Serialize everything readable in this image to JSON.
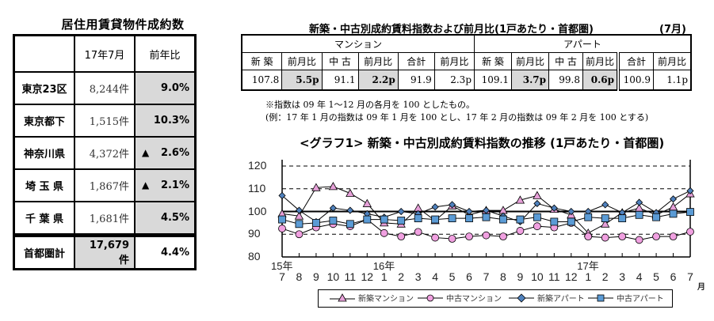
{
  "left_table": {
    "title": "居住用賃貸物件成約数",
    "headers": [
      "",
      "17年7月",
      "前年比"
    ],
    "rows": [
      {
        "region": "東京23区",
        "count": "8,244件",
        "triangle": "",
        "yoy": "9.0%"
      },
      {
        "region": "東京都下",
        "count": "1,515件",
        "triangle": "",
        "yoy": "10.3%"
      },
      {
        "region": "神奈川県",
        "count": "4,372件",
        "triangle": "▲",
        "yoy": "2.6%"
      },
      {
        "region": "埼 玉 県",
        "count": "1,867件",
        "triangle": "▲",
        "yoy": "2.1%"
      },
      {
        "region": "千 葉 県",
        "count": "1,681件",
        "triangle": "",
        "yoy": "4.5%"
      }
    ],
    "total": {
      "region": "首都圏計",
      "count": "17,679件",
      "yoy": "4.4%"
    }
  },
  "right_table": {
    "title": "新築・中古別成約賃料指数および前月比(1戸あたり・首都圏)",
    "month": "(7月)",
    "groups": [
      "マンション",
      "アパート"
    ],
    "headers": [
      "新 築",
      "前月比",
      "中 古",
      "前月比",
      "合計",
      "前月比",
      "新 築",
      "前月比",
      "中 古",
      "前月比",
      "合計",
      "前月比"
    ],
    "values": [
      "107.8",
      "5.5p",
      "91.1",
      "2.2p",
      "91.9",
      "2.3p",
      "109.1",
      "3.7p",
      "99.8",
      "0.6p",
      "100.9",
      "1.1p"
    ]
  },
  "notes": {
    "line1": "※指数は 09 年 1～12 月の各月を 100 としたもの。",
    "line2": "(例：17 年 1 月の指数は 09 年 1 月を 100 とし、17 年 2 月の指数は 09 年 2 月を 100 とする)"
  },
  "chart_data": {
    "type": "line",
    "title": "<グラフ1> 新築・中古別成約賃料指数の推移 (1戸あたり・首都圏)",
    "xlabel": "月",
    "ylabel": "",
    "ylim": [
      80,
      120
    ],
    "yticks": [
      80,
      90,
      100,
      110,
      120
    ],
    "grid": "dashed horizontal at 90, 110, 120; solid at 100",
    "legend_position": "bottom",
    "year_labels": [
      {
        "index": 0,
        "label": "15年"
      },
      {
        "index": 6,
        "label": "16年"
      },
      {
        "index": 18,
        "label": "17年"
      }
    ],
    "categories": [
      "7",
      "8",
      "9",
      "10",
      "11",
      "12",
      "1",
      "2",
      "3",
      "4",
      "5",
      "6",
      "7",
      "8",
      "9",
      "10",
      "11",
      "12",
      "1",
      "2",
      "3",
      "4",
      "5",
      "6",
      "7"
    ],
    "series": [
      {
        "name": "新築マンション",
        "marker": "triangle",
        "color": "#e6a0d8",
        "values": [
          99,
          98,
          110.5,
          111,
          108,
          103.5,
          95,
          94.5,
          101.5,
          96,
          102.5,
          98.5,
          100.5,
          100.5,
          105,
          107,
          101,
          98.5,
          90.5,
          94.5,
          99.5,
          101.5,
          98.5,
          102,
          107.8
        ]
      },
      {
        "name": "中古マンション",
        "marker": "circle",
        "color": "#f0a0e0",
        "values": [
          92.5,
          90,
          93,
          94.5,
          93.5,
          96.5,
          90.5,
          89,
          91,
          88.5,
          88,
          89,
          89.5,
          89,
          91.5,
          93.5,
          93,
          95,
          89,
          88.5,
          89,
          87.5,
          89,
          89,
          91.1
        ]
      },
      {
        "name": "新築アパート",
        "marker": "diamond",
        "color": "#4f81bd",
        "values": [
          107,
          100.5,
          95.5,
          101.5,
          100.5,
          99,
          97.5,
          100,
          99,
          102,
          103,
          100,
          100.5,
          98,
          95.5,
          103.5,
          101.5,
          100,
          100,
          103,
          99.5,
          104,
          99.5,
          105.5,
          109.1
        ]
      },
      {
        "name": "中古アパート",
        "marker": "square",
        "color": "#5b9bd5",
        "values": [
          96.5,
          94.5,
          95,
          96,
          94.5,
          96.5,
          96.5,
          96,
          97,
          96.5,
          97,
          97,
          97.5,
          96.5,
          96.5,
          97.5,
          95.5,
          95.5,
          97.5,
          97,
          97,
          98.5,
          97.5,
          99,
          99.8
        ]
      }
    ]
  }
}
